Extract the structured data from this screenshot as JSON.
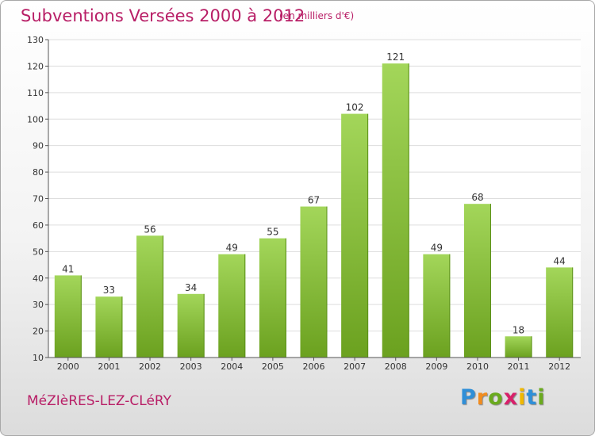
{
  "header": {
    "title": "Subventions Versées 2000 à 2012",
    "subtitle": "(en milliers d'€)"
  },
  "footer": {
    "place": "MéZIèRES-LEZ-CLéRY",
    "logo_letters": [
      "P",
      "r",
      "o",
      "x",
      "i",
      "t",
      "i"
    ],
    "logo_colors": [
      "#2f8fd8",
      "#f28c1e",
      "#6aaa1e",
      "#d8206a",
      "#f0b800",
      "#2f8fd8",
      "#6aaa1e"
    ]
  },
  "chart_data": {
    "type": "bar",
    "title": "Subventions Versées 2000 à 2012",
    "subtitle": "(en milliers d'€)",
    "categories": [
      "2000",
      "2001",
      "2002",
      "2003",
      "2004",
      "2005",
      "2006",
      "2007",
      "2008",
      "2009",
      "2010",
      "2011",
      "2012"
    ],
    "values": [
      41,
      33,
      56,
      34,
      49,
      55,
      67,
      102,
      121,
      49,
      68,
      18,
      44
    ],
    "ylim": [
      10,
      130
    ],
    "yticks": [
      10,
      20,
      30,
      40,
      50,
      60,
      70,
      80,
      90,
      100,
      110,
      120,
      130
    ],
    "grid": true,
    "bar_color_light": "#a3d65a",
    "bar_color_dark": "#6ba11f"
  }
}
